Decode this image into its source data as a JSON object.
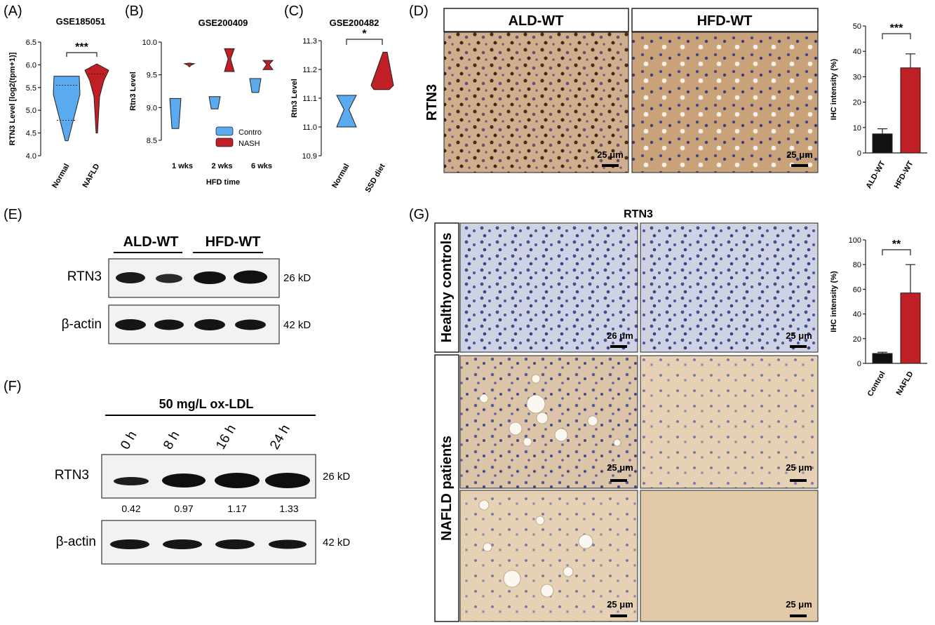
{
  "panels": {
    "A": "(A)",
    "B": "(B)",
    "C": "(C)",
    "D": "(D)",
    "E": "(E)",
    "F": "(F)",
    "G": "(G)"
  },
  "colors": {
    "blue": "#5aaaf0",
    "red": "#c01f25",
    "black": "#111111",
    "stroke": "#222222"
  },
  "chart_data": [
    {
      "id": "A",
      "type": "violin",
      "title": "GSE185051",
      "ylabel": "RTN3 Level [log2(tpm+1)]",
      "ylim": [
        4.0,
        6.5
      ],
      "yticks": [
        "4.0",
        "4.5",
        "5.0",
        "5.5",
        "6.0",
        "6.5"
      ],
      "categories": [
        "Normal",
        "NAFLD"
      ],
      "series": [
        {
          "category": "Normal",
          "min": 4.33,
          "max": 5.75,
          "q1": 4.78,
          "median": 4.95,
          "q3": 5.55
        },
        {
          "category": "NAFLD",
          "min": 4.5,
          "max": 6.0,
          "q1": 5.5,
          "median": 5.8,
          "q3": 5.9
        }
      ],
      "significance": "***"
    },
    {
      "id": "B",
      "type": "violin",
      "title": "GSE200409",
      "ylabel": "Rtn3 Level",
      "xlabel": "HFD time",
      "ylim": [
        8.5,
        10.0
      ],
      "yticks": [
        "8.5",
        "9.0",
        "9.5",
        "10.0"
      ],
      "categories": [
        "1 wks",
        "2 wks",
        "6 wks"
      ],
      "legend": [
        "Contro",
        "NASH"
      ],
      "series": [
        {
          "name": "Contro",
          "values_range": [
            [
              8.68,
              9.22
            ],
            [
              8.98,
              9.2
            ],
            [
              9.23,
              9.48
            ]
          ]
        },
        {
          "name": "NASH",
          "values_range": [
            [
              9.62,
              9.68
            ],
            [
              9.55,
              9.9
            ],
            [
              9.58,
              9.72
            ]
          ]
        }
      ]
    },
    {
      "id": "C",
      "type": "violin",
      "title": "GSE200482",
      "ylabel": "Rtn3 Level",
      "ylim": [
        10.9,
        11.3
      ],
      "yticks": [
        "10.9",
        "11.0",
        "11.1",
        "11.2",
        "11.3"
      ],
      "categories": [
        "Normal",
        "SSD diet"
      ],
      "series": [
        {
          "category": "Normal",
          "min": 11.0,
          "max": 11.11
        },
        {
          "category": "SSD diet",
          "min": 11.13,
          "max": 11.26
        }
      ],
      "significance": "*"
    },
    {
      "id": "D",
      "type": "bar",
      "ylabel": "IHC intensity (%)",
      "ylim": [
        0,
        50
      ],
      "yticks": [
        "0",
        "10",
        "20",
        "30",
        "40",
        "50"
      ],
      "categories": [
        "ALD-WT",
        "HFD-WT"
      ],
      "values": [
        7.5,
        33.5
      ],
      "errors": [
        2.0,
        5.5
      ],
      "significance": "***"
    },
    {
      "id": "G",
      "type": "bar",
      "ylabel": "IHC intensity (%)",
      "ylim": [
        0,
        100
      ],
      "yticks": [
        "0",
        "20",
        "40",
        "60",
        "80",
        "100"
      ],
      "categories": [
        "Control",
        "NAFLD"
      ],
      "values": [
        8,
        57
      ],
      "errors": [
        1,
        23
      ],
      "significance": "**"
    }
  ],
  "panel_d": {
    "headers": [
      "ALD-WT",
      "HFD-WT"
    ],
    "row_label": "RTN3",
    "scale": "25 μm"
  },
  "panel_e": {
    "groups": [
      "ALD-WT",
      "HFD-WT"
    ],
    "rows": [
      {
        "label": "RTN3",
        "kd": "26 kD"
      },
      {
        "label": "β-actin",
        "kd": "42 kD"
      }
    ]
  },
  "panel_f": {
    "treatment": "50 mg/L ox-LDL",
    "timepoints": [
      "0 h",
      "8 h",
      "16 h",
      "24 h"
    ],
    "rows": [
      {
        "label": "RTN3",
        "kd": "26 kD"
      },
      {
        "label": "β-actin",
        "kd": "42 kD"
      }
    ],
    "quant": [
      "0.42",
      "0.97",
      "1.17",
      "1.33"
    ]
  },
  "panel_g": {
    "title": "RTN3",
    "row_labels": [
      "Healthy controls",
      "NAFLD patients"
    ],
    "scales": [
      "26 μm",
      "25 μm",
      "25 μm",
      "25 μm",
      "25 μm",
      "25 μm"
    ]
  }
}
